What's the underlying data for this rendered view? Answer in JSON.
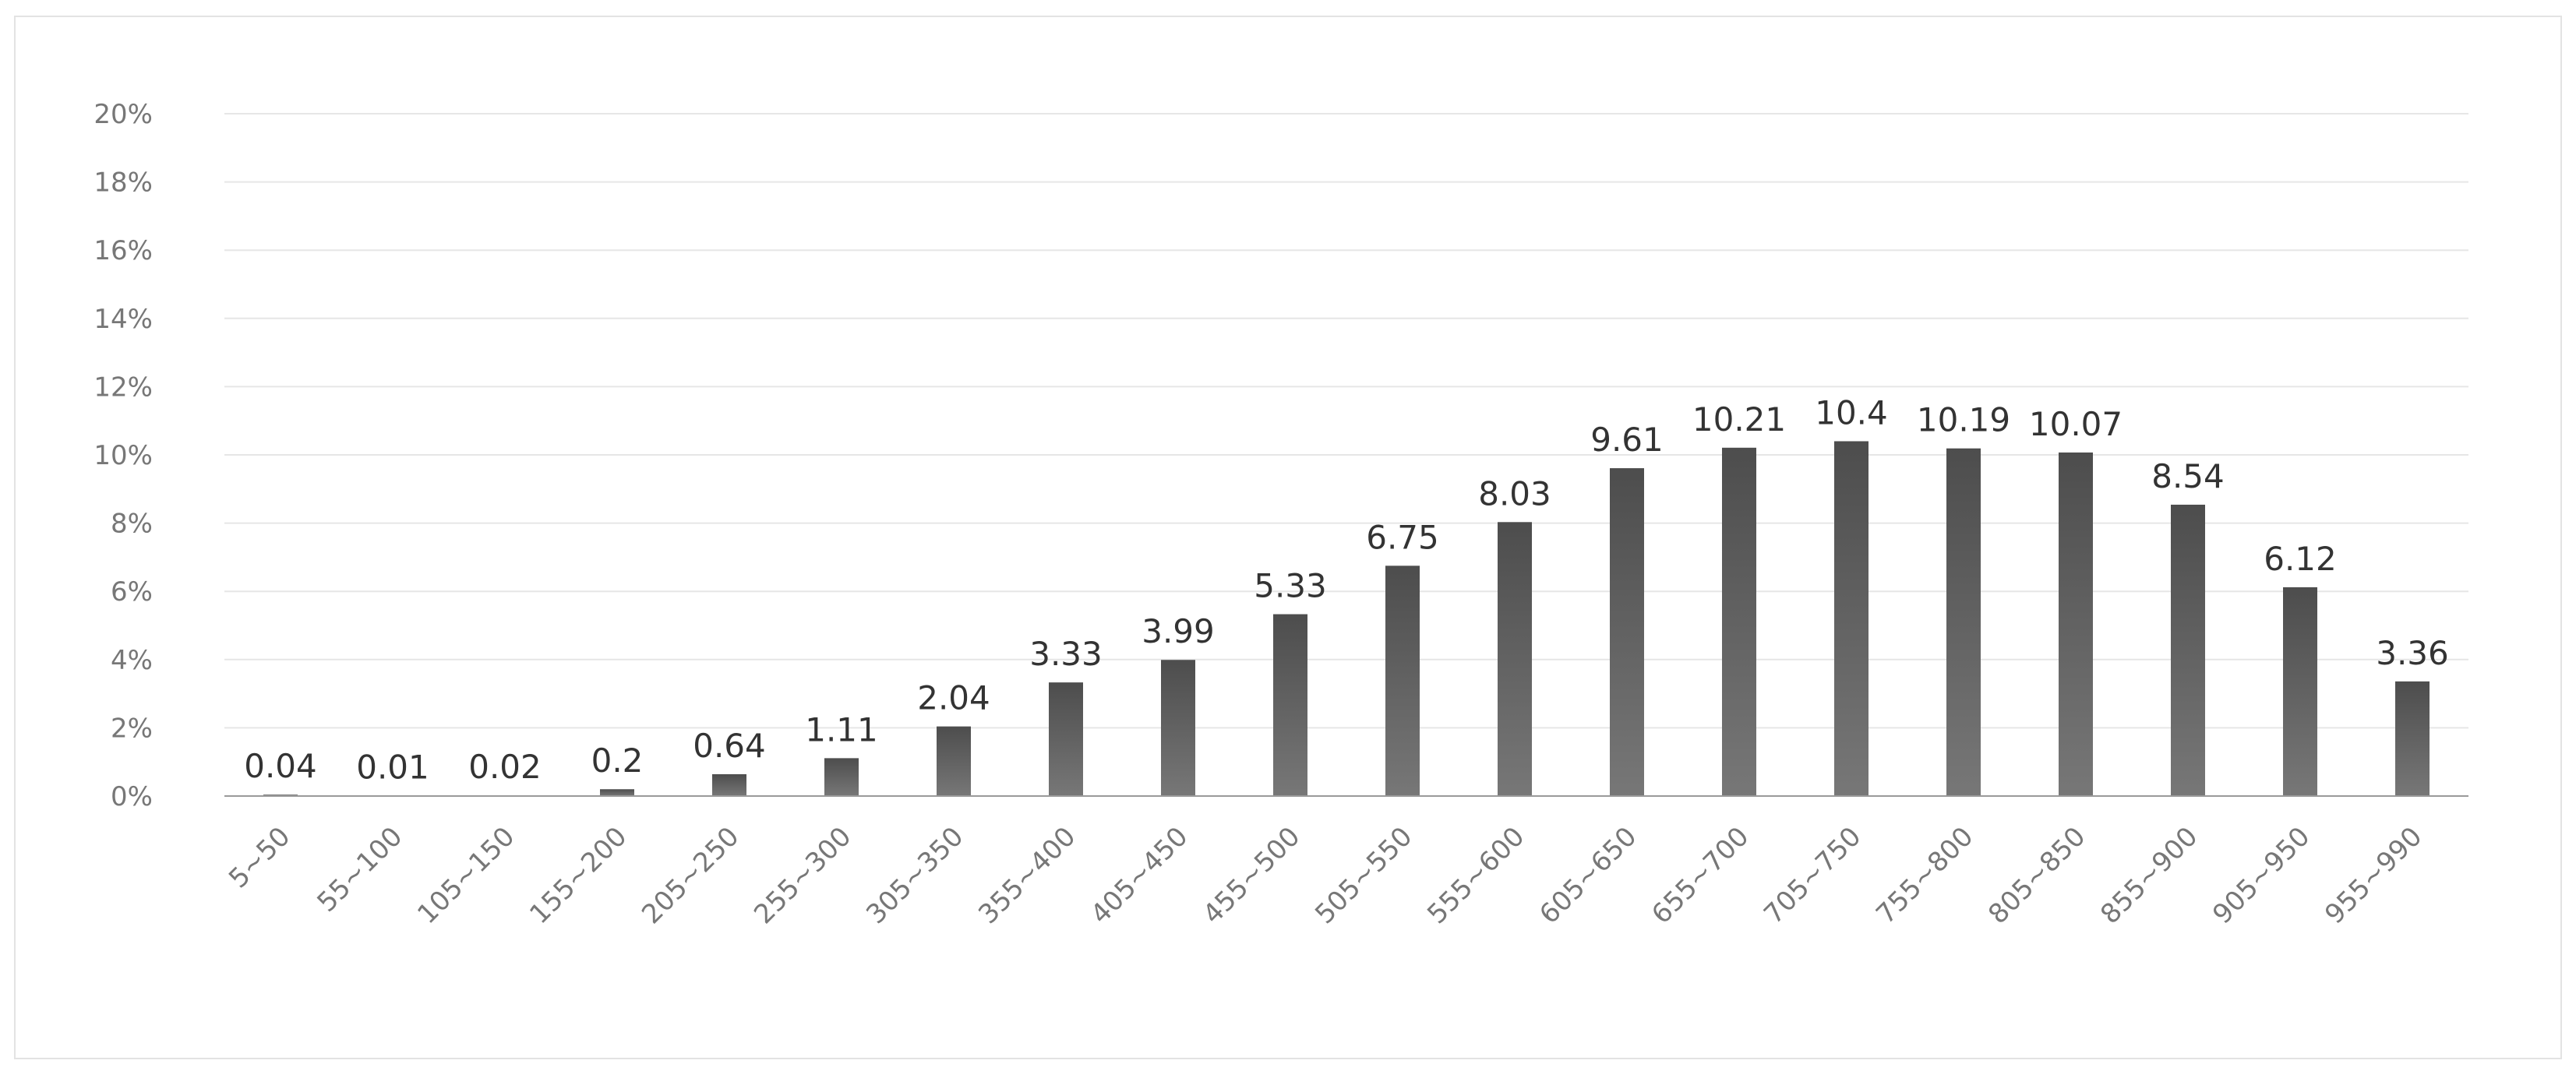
{
  "chart_data": {
    "type": "bar",
    "title": "",
    "xlabel": "",
    "ylabel": "",
    "ylim": [
      0,
      20
    ],
    "y_ticks": [
      "0%",
      "2%",
      "4%",
      "6%",
      "8%",
      "10%",
      "12%",
      "14%",
      "16%",
      "18%",
      "20%"
    ],
    "grid": true,
    "legend": "none",
    "bar_color": "#5f5f5f",
    "categories": [
      "5~50",
      "55~100",
      "105~150",
      "155~200",
      "205~250",
      "255~300",
      "305~350",
      "355~400",
      "405~450",
      "455~500",
      "505~550",
      "555~600",
      "605~650",
      "655~700",
      "705~750",
      "755~800",
      "805~850",
      "855~900",
      "905~950",
      "955~990"
    ],
    "values": [
      0.04,
      0.01,
      0.02,
      0.2,
      0.64,
      1.11,
      2.04,
      3.33,
      3.99,
      5.33,
      6.75,
      8.03,
      9.61,
      10.21,
      10.4,
      10.19,
      10.07,
      8.54,
      6.12,
      3.36
    ],
    "data_labels": [
      "0.04",
      "0.01",
      "0.02",
      "0.2",
      "0.64",
      "1.11",
      "2.04",
      "3.33",
      "3.99",
      "5.33",
      "6.75",
      "8.03",
      "9.61",
      "10.21",
      "10.4",
      "10.19",
      "10.07",
      "8.54",
      "6.12",
      "3.36"
    ]
  }
}
